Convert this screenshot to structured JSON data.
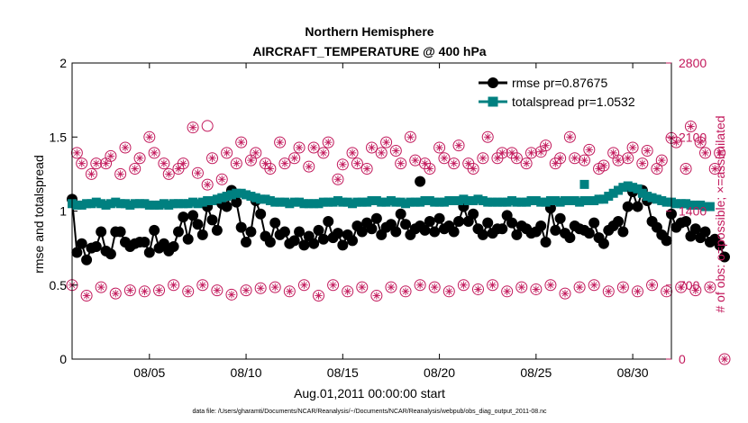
{
  "chart_data": {
    "type": "line",
    "title_line1": "Northern Hemisphere",
    "title_line2": "AIRCRAFT_TEMPERATURE @ 400 hPa",
    "xlabel": "Aug.01,2011 00:00:00 start",
    "ylabel_left": "rmse and totalspread",
    "ylabel_right": "# of obs: o=possible; ×=assimilated",
    "footnote": "data file: /Users/gharamti/Documents/NCAR/Reanalysis/~/Documents/NCAR/Reanalysis/webpub/obs_diag_output_2011-08.nc",
    "xlim": [
      1,
      32
    ],
    "ylim_left": [
      0,
      2
    ],
    "ylim_right": [
      0,
      2800
    ],
    "x_ticks": [
      5,
      10,
      15,
      20,
      25,
      30
    ],
    "x_tick_labels": [
      "08/05",
      "08/10",
      "08/15",
      "08/20",
      "08/25",
      "08/30"
    ],
    "y_left_ticks": [
      0,
      0.5,
      1,
      1.5,
      2
    ],
    "y_left_tick_labels": [
      "0",
      "0.5",
      "1",
      "1.5",
      "2"
    ],
    "y_right_ticks": [
      0,
      700,
      1400,
      2100,
      2800
    ],
    "y_right_tick_labels": [
      "0",
      "700",
      "1400",
      "2100",
      "2800"
    ],
    "colors": {
      "rmse": "#000000",
      "totalspread": "#008080",
      "obs": "#c2185b"
    },
    "series": [
      {
        "name": "rmse pr=0.87675",
        "x_start": 1.0,
        "x_step": 0.25,
        "values": [
          1.08,
          0.72,
          0.78,
          0.67,
          0.75,
          0.76,
          0.86,
          0.73,
          0.71,
          0.86,
          0.86,
          0.79,
          0.76,
          0.78,
          0.79,
          0.79,
          0.72,
          0.87,
          0.75,
          0.78,
          0.73,
          0.76,
          0.86,
          0.96,
          0.81,
          0.97,
          0.91,
          0.84,
          1.03,
          0.94,
          0.87,
          1.05,
          1.03,
          1.14,
          1.06,
          0.89,
          0.79,
          0.86,
          1.07,
          0.98,
          0.83,
          0.79,
          0.92,
          0.84,
          0.86,
          0.78,
          0.8,
          0.86,
          0.77,
          0.83,
          0.78,
          0.87,
          0.81,
          0.93,
          0.82,
          0.85,
          0.77,
          0.84,
          0.8,
          0.9,
          0.86,
          0.92,
          0.88,
          0.95,
          0.84,
          0.89,
          0.91,
          0.86,
          0.98,
          0.91,
          0.84,
          0.88,
          0.9,
          0.87,
          0.93,
          0.86,
          0.95,
          0.88,
          0.9,
          0.86,
          0.93,
          1.03,
          0.93,
          0.98,
          0.88,
          0.84,
          0.92,
          0.85,
          0.88,
          0.88,
          0.97,
          0.92,
          0.84,
          0.9,
          0.88,
          0.85,
          0.86,
          0.9,
          0.79,
          1.02,
          0.87,
          0.95,
          0.85,
          0.82,
          0.9,
          0.88,
          0.87,
          0.85,
          0.92,
          0.82,
          0.78,
          0.87,
          0.9,
          0.93,
          0.86,
          1.03,
          1.13,
          1.03,
          1.14,
          1.07,
          0.93,
          0.89,
          0.84,
          0.8,
          0.98,
          0.89,
          0.92,
          0.93,
          0.83,
          0.88,
          0.82,
          0.86,
          0.79,
          0.81,
          0.77,
          0.69
        ],
        "highlight": {
          "x": 19.0,
          "y": 1.2
        }
      },
      {
        "name": "totalspread pr=1.0532",
        "x_start": 1.0,
        "x_step": 0.25,
        "values": [
          1.05,
          1.04,
          1.04,
          1.05,
          1.05,
          1.06,
          1.05,
          1.04,
          1.05,
          1.06,
          1.05,
          1.05,
          1.04,
          1.05,
          1.05,
          1.05,
          1.04,
          1.04,
          1.04,
          1.05,
          1.04,
          1.05,
          1.05,
          1.05,
          1.05,
          1.06,
          1.05,
          1.06,
          1.07,
          1.07,
          1.08,
          1.09,
          1.1,
          1.11,
          1.12,
          1.12,
          1.11,
          1.1,
          1.09,
          1.08,
          1.08,
          1.07,
          1.06,
          1.06,
          1.06,
          1.05,
          1.06,
          1.06,
          1.05,
          1.05,
          1.05,
          1.05,
          1.06,
          1.06,
          1.06,
          1.07,
          1.06,
          1.06,
          1.05,
          1.06,
          1.06,
          1.06,
          1.07,
          1.07,
          1.06,
          1.06,
          1.07,
          1.06,
          1.06,
          1.05,
          1.06,
          1.06,
          1.06,
          1.07,
          1.07,
          1.06,
          1.06,
          1.06,
          1.07,
          1.07,
          1.07,
          1.08,
          1.07,
          1.07,
          1.08,
          1.07,
          1.06,
          1.06,
          1.06,
          1.06,
          1.06,
          1.07,
          1.06,
          1.06,
          1.06,
          1.07,
          1.07,
          1.06,
          1.06,
          1.07,
          1.07,
          1.06,
          1.07,
          1.07,
          1.07,
          1.06,
          1.07,
          1.07,
          1.07,
          1.08,
          1.08,
          1.1,
          1.12,
          1.14,
          1.16,
          1.17,
          1.16,
          1.15,
          1.12,
          1.1,
          1.09,
          1.08,
          1.07,
          1.06,
          1.06,
          1.05,
          1.05,
          1.05,
          1.04,
          1.04,
          1.04,
          1.03,
          1.03
        ],
        "highlight": {
          "x": 27.5,
          "y": 1.18
        }
      }
    ],
    "obs_possible": {
      "x_start": 1.0,
      "x_step": 0.25,
      "values": [
        700,
        1950,
        1850,
        600,
        1750,
        1850,
        680,
        1850,
        1920,
        620,
        1750,
        2000,
        650,
        1800,
        1900,
        640,
        2100,
        1950,
        650,
        1850,
        1750,
        700,
        1800,
        1850,
        640,
        2190,
        1760,
        700,
        1650,
        1900,
        650,
        1700,
        1950,
        610,
        1850,
        2050,
        650,
        1880,
        1950,
        670,
        1850,
        1800,
        680,
        2050,
        1850,
        640,
        1900,
        2000,
        700,
        1820,
        2000,
        600,
        1950,
        2050,
        700,
        1700,
        1840,
        640,
        1950,
        1850,
        680,
        1800,
        2000,
        600,
        1950,
        2050,
        680,
        1970,
        1850,
        640,
        2100,
        1880,
        700,
        1850,
        1800,
        680,
        2000,
        1900,
        640,
        1850,
        2020,
        700,
        1850,
        1800,
        660,
        1900,
        2100,
        700,
        1900,
        1950,
        640,
        1950,
        1900,
        680,
        1850,
        1950,
        660,
        1960,
        2020,
        700,
        1850,
        1900,
        620,
        2100,
        1900,
        680,
        1880,
        1980,
        700,
        1800,
        1830,
        640,
        1950,
        1880,
        680,
        1900,
        2000,
        640,
        1850,
        1970,
        700,
        1800,
        1880,
        640,
        2090,
        2050,
        680,
        1800,
        2200,
        650,
        2050,
        1950,
        680,
        1800,
        1950,
        0
      ],
      "highlight": {
        "x": 8.0,
        "y": 2205
      }
    },
    "obs_assimilated": {
      "x_start": 1.0,
      "x_step": 0.25,
      "values": [
        700,
        1950,
        1850,
        600,
        1750,
        1850,
        680,
        1850,
        1920,
        620,
        1750,
        2000,
        650,
        1800,
        1900,
        640,
        2100,
        1950,
        650,
        1850,
        1750,
        700,
        1800,
        1850,
        640,
        2190,
        1760,
        700,
        1650,
        1900,
        650,
        1700,
        1950,
        610,
        1850,
        2050,
        650,
        1880,
        1950,
        670,
        1850,
        1800,
        680,
        2050,
        1850,
        640,
        1900,
        2000,
        700,
        1820,
        2000,
        600,
        1950,
        2050,
        700,
        1700,
        1840,
        640,
        1950,
        1850,
        680,
        1800,
        2000,
        600,
        1950,
        2050,
        680,
        1970,
        1850,
        640,
        2100,
        1880,
        700,
        1850,
        1800,
        680,
        2000,
        1900,
        640,
        1850,
        2020,
        700,
        1850,
        1800,
        660,
        1900,
        2100,
        700,
        1900,
        1950,
        640,
        1950,
        1900,
        680,
        1850,
        1950,
        660,
        1960,
        2020,
        700,
        1850,
        1900,
        620,
        2100,
        1900,
        680,
        1880,
        1980,
        700,
        1800,
        1830,
        640,
        1950,
        1880,
        680,
        1900,
        2000,
        640,
        1850,
        1970,
        700,
        1800,
        1880,
        640,
        2090,
        2050,
        680,
        1800,
        2200,
        650,
        2050,
        1950,
        680,
        1800,
        1950,
        0
      ]
    },
    "legend": {
      "placement": "top-right"
    }
  }
}
